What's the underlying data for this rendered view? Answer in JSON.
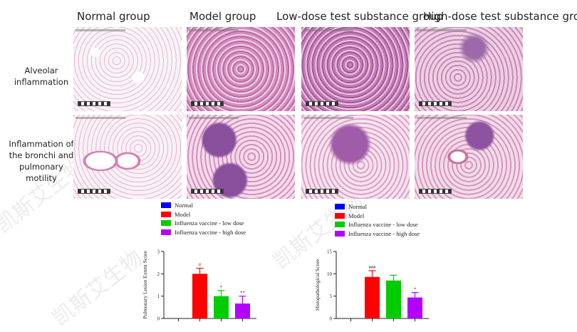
{
  "columns": [
    "Normal group",
    "Model group",
    "Low-dose test substance group",
    "High-dose test substance group"
  ],
  "rows": [
    "Alveolar inflammation",
    "Inflammation of the bronchi and pulmonary motility"
  ],
  "legend": [
    {
      "label": "Normal",
      "color": "#0000ff"
    },
    {
      "label": "Model",
      "color": "#ff0000"
    },
    {
      "label": "Influenza vaccine - low dose",
      "color": "#00cc00"
    },
    {
      "label": "Influenza vaccine - high dose",
      "color": "#b400ff"
    }
  ],
  "watermark": "凯斯艾生物",
  "chart_data": [
    {
      "type": "bar",
      "ylabel": "Pulmonary Lesion Extent Score",
      "ylim": [
        0,
        3
      ],
      "yticks": [
        "0",
        "1",
        "2",
        "3"
      ],
      "series": [
        {
          "name": "Normal",
          "value": 0,
          "error": 0,
          "annotation": "",
          "color": "#0000ff"
        },
        {
          "name": "Model",
          "value": 2.0,
          "error": 0.25,
          "annotation": "#",
          "color": "#ff0000"
        },
        {
          "name": "Influenza vaccine - low dose",
          "value": 1.0,
          "error": 0.25,
          "annotation": "*",
          "color": "#00cc00"
        },
        {
          "name": "Influenza vaccine - high dose",
          "value": 0.67,
          "error": 0.33,
          "annotation": "**",
          "color": "#b400ff"
        }
      ]
    },
    {
      "type": "bar",
      "ylabel": "Histopathological Score",
      "ylim": [
        0,
        15
      ],
      "yticks": [
        "0",
        "5",
        "10",
        "15"
      ],
      "series": [
        {
          "name": "Normal",
          "value": 0,
          "error": 0,
          "annotation": "",
          "color": "#0000ff"
        },
        {
          "name": "Model",
          "value": 9.3,
          "error": 1.4,
          "annotation": "###",
          "color": "#ff0000"
        },
        {
          "name": "Influenza vaccine - low dose",
          "value": 8.5,
          "error": 1.2,
          "annotation": "",
          "color": "#00cc00"
        },
        {
          "name": "Influenza vaccine - high dose",
          "value": 4.7,
          "error": 1.1,
          "annotation": "*",
          "color": "#b400ff"
        }
      ]
    }
  ]
}
